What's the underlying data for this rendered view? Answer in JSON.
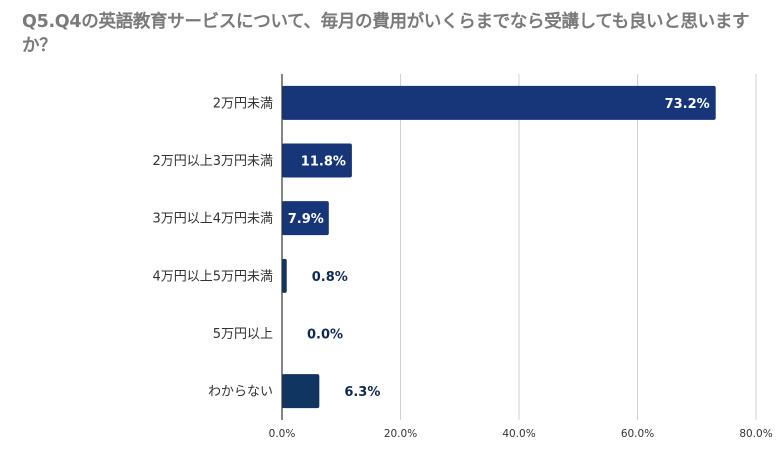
{
  "chart_data": {
    "type": "bar",
    "orientation": "horizontal",
    "title": "Q5.Q4の英語教育サービスについて、毎月の費用がいくらまでなら受講しても良いと思いますか？",
    "categories": [
      "2万円未満",
      "2万円以上3万円未満",
      "3万円以上4万円未満",
      "4万円以上5万円未満",
      "5万円以上",
      "わからない"
    ],
    "values": [
      73.2,
      11.8,
      7.9,
      0.8,
      0.0,
      6.3
    ],
    "value_labels": [
      "73.2%",
      "11.8%",
      "7.9%",
      "0.8%",
      "0.0%",
      "6.3%"
    ],
    "bar_colors": [
      "#17367a",
      "#17367a",
      "#17367a",
      "#0f3560",
      "#0f3560",
      "#0f3560"
    ],
    "xlim": [
      0,
      80
    ],
    "xticks": [
      0,
      20,
      40,
      60,
      80
    ],
    "xtick_labels": [
      "0.0%",
      "20.0%",
      "40.0%",
      "60.0%",
      "80.0%"
    ],
    "grid": true,
    "legend": "none",
    "xlabel": "",
    "ylabel": ""
  }
}
